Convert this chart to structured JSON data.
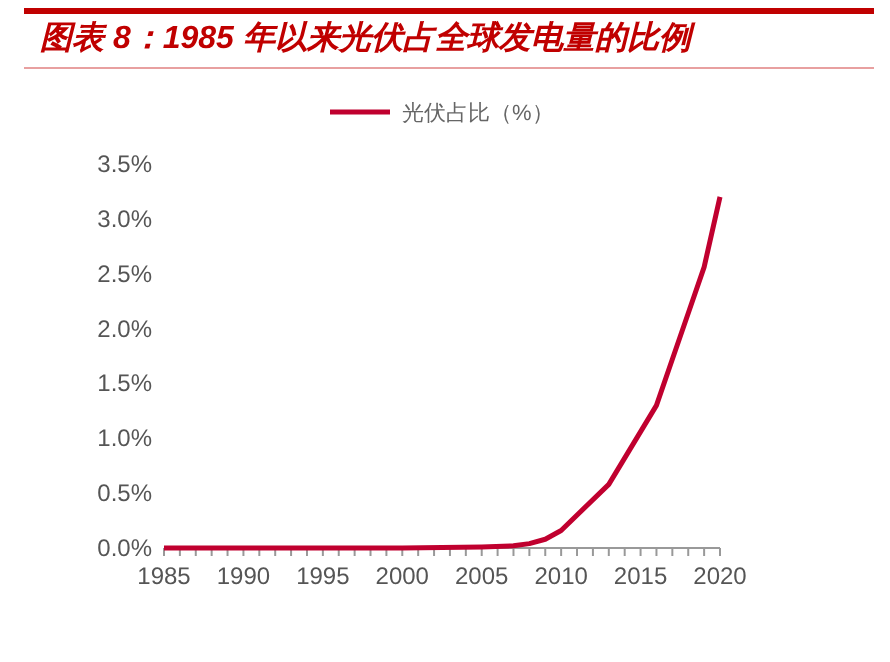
{
  "chart_data": {
    "type": "line",
    "title": "图表 8：1985 年以来光伏占全球发电量的比例",
    "x": [
      1985,
      1990,
      1995,
      2000,
      2005,
      2007,
      2008,
      2009,
      2010,
      2013,
      2016,
      2017,
      2018,
      2019,
      2020
    ],
    "series": [
      {
        "name": "光伏占比（%）",
        "color": "#c0002f",
        "values": [
          0,
          0,
          0,
          0,
          0.01,
          0.02,
          0.04,
          0.08,
          0.16,
          0.58,
          1.3,
          1.72,
          2.14,
          2.56,
          3.2
        ]
      }
    ],
    "xlim": [
      1985,
      2020
    ],
    "xticks": [
      1985,
      1990,
      1995,
      2000,
      2005,
      2010,
      2015,
      2020
    ],
    "ylim": [
      0,
      3.5
    ],
    "yticks": [
      {
        "value": 0,
        "label": "0.0%"
      },
      {
        "value": 0.5,
        "label": "0.5%"
      },
      {
        "value": 1,
        "label": "1.0%"
      },
      {
        "value": 1.5,
        "label": "1.5%"
      },
      {
        "value": 2,
        "label": "2.0%"
      },
      {
        "value": 2.5,
        "label": "2.5%"
      },
      {
        "value": 3,
        "label": "3.0%"
      },
      {
        "value": 3.5,
        "label": "3.5%"
      }
    ],
    "grid": false,
    "legend": "top",
    "marker": "none",
    "line_style": "solid"
  }
}
